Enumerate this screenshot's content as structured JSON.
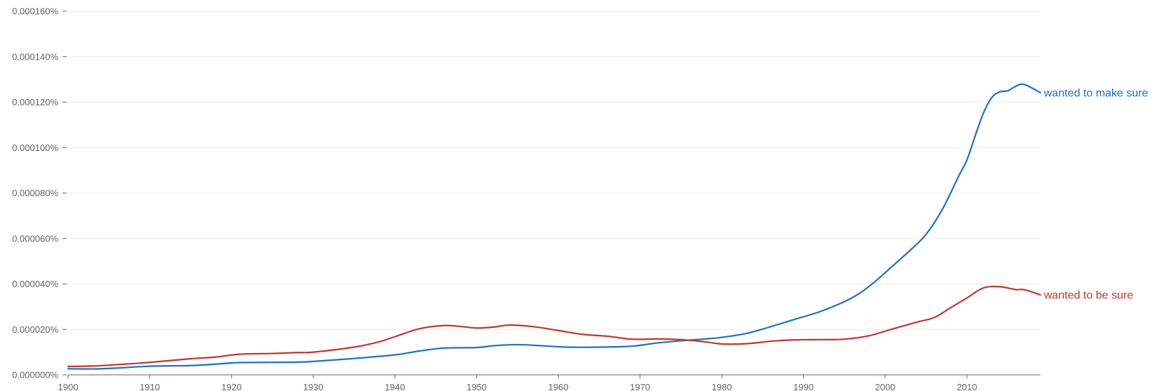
{
  "chart_data": {
    "type": "line",
    "title": "",
    "xlabel": "",
    "ylabel": "",
    "xlim": [
      1900,
      2019
    ],
    "ylim": [
      0,
      0.00016
    ],
    "grid": true,
    "legend": "inline labels at right end of lines",
    "x_ticks": [
      1900,
      1910,
      1920,
      1930,
      1940,
      1950,
      1960,
      1970,
      1980,
      1990,
      2000,
      2010
    ],
    "y_ticks": [
      0,
      2e-05,
      4e-05,
      6e-05,
      8e-05,
      0.0001,
      0.00012,
      0.00014,
      0.00016
    ],
    "x_tick_labels": [
      "1900",
      "1910",
      "1920",
      "1930",
      "1940",
      "1950",
      "1960",
      "1970",
      "1980",
      "1990",
      "2000",
      "2010"
    ],
    "y_tick_labels": [
      "0.000000%",
      "0.000020%",
      "0.000040%",
      "0.000060%",
      "0.000080%",
      "0.000100%",
      "0.000120%",
      "0.000140%",
      "0.000160%"
    ],
    "series": [
      {
        "name": "wanted to make sure",
        "color": "#1f6fc5",
        "points": [
          [
            1900,
            2.7e-06
          ],
          [
            1903,
            2.6e-06
          ],
          [
            1906,
            3e-06
          ],
          [
            1910,
            3.8e-06
          ],
          [
            1915,
            4.1e-06
          ],
          [
            1918,
            4.7e-06
          ],
          [
            1921,
            5.4e-06
          ],
          [
            1925,
            5.5e-06
          ],
          [
            1928,
            5.6e-06
          ],
          [
            1930,
            5.9e-06
          ],
          [
            1935,
            7.2e-06
          ],
          [
            1940,
            8.8e-06
          ],
          [
            1943,
            1.05e-05
          ],
          [
            1946,
            1.18e-05
          ],
          [
            1950,
            1.2e-05
          ],
          [
            1952,
            1.28e-05
          ],
          [
            1955,
            1.33e-05
          ],
          [
            1958,
            1.28e-05
          ],
          [
            1961,
            1.22e-05
          ],
          [
            1965,
            1.22e-05
          ],
          [
            1969,
            1.26e-05
          ],
          [
            1972,
            1.4e-05
          ],
          [
            1975,
            1.5e-05
          ],
          [
            1978,
            1.58e-05
          ],
          [
            1980,
            1.65e-05
          ],
          [
            1983,
            1.82e-05
          ],
          [
            1986,
            2.12e-05
          ],
          [
            1989,
            2.45e-05
          ],
          [
            1992,
            2.78e-05
          ],
          [
            1995,
            3.22e-05
          ],
          [
            1997,
            3.62e-05
          ],
          [
            1999,
            4.18e-05
          ],
          [
            2001,
            4.82e-05
          ],
          [
            2003,
            5.46e-05
          ],
          [
            2005,
            6.18e-05
          ],
          [
            2007,
            7.28e-05
          ],
          [
            2009,
            8.75e-05
          ],
          [
            2010,
            9.45e-05
          ],
          [
            2011,
            0.000105
          ],
          [
            2012,
            0.000115
          ],
          [
            2013,
            0.0001218
          ],
          [
            2014,
            0.0001245
          ],
          [
            2015,
            0.000125
          ],
          [
            2016,
            0.000127
          ],
          [
            2017,
            0.0001278
          ],
          [
            2019,
            0.0001242
          ]
        ]
      },
      {
        "name": "wanted to be sure",
        "color": "#c0352d",
        "points": [
          [
            1900,
            3.7e-06
          ],
          [
            1903,
            3.9e-06
          ],
          [
            1906,
            4.5e-06
          ],
          [
            1910,
            5.5e-06
          ],
          [
            1915,
            7.1e-06
          ],
          [
            1918,
            7.8e-06
          ],
          [
            1921,
            9.1e-06
          ],
          [
            1925,
            9.4e-06
          ],
          [
            1928,
            9.8e-06
          ],
          [
            1930,
            1e-05
          ],
          [
            1935,
            1.22e-05
          ],
          [
            1938,
            1.45e-05
          ],
          [
            1940,
            1.68e-05
          ],
          [
            1943,
            2.03e-05
          ],
          [
            1946,
            2.17e-05
          ],
          [
            1948,
            2.13e-05
          ],
          [
            1950,
            2.06e-05
          ],
          [
            1952,
            2.1e-05
          ],
          [
            1954,
            2.19e-05
          ],
          [
            1957,
            2.12e-05
          ],
          [
            1960,
            1.95e-05
          ],
          [
            1963,
            1.78e-05
          ],
          [
            1966,
            1.7e-05
          ],
          [
            1969,
            1.57e-05
          ],
          [
            1972,
            1.58e-05
          ],
          [
            1975,
            1.55e-05
          ],
          [
            1978,
            1.45e-05
          ],
          [
            1980,
            1.36e-05
          ],
          [
            1983,
            1.37e-05
          ],
          [
            1986,
            1.48e-05
          ],
          [
            1989,
            1.54e-05
          ],
          [
            1992,
            1.55e-05
          ],
          [
            1995,
            1.57e-05
          ],
          [
            1998,
            1.72e-05
          ],
          [
            2001,
            2.03e-05
          ],
          [
            2004,
            2.33e-05
          ],
          [
            2006,
            2.52e-05
          ],
          [
            2008,
            2.95e-05
          ],
          [
            2010,
            3.38e-05
          ],
          [
            2012,
            3.82e-05
          ],
          [
            2014,
            3.88e-05
          ],
          [
            2016,
            3.75e-05
          ],
          [
            2017,
            3.75e-05
          ],
          [
            2019,
            3.52e-05
          ]
        ]
      }
    ]
  }
}
